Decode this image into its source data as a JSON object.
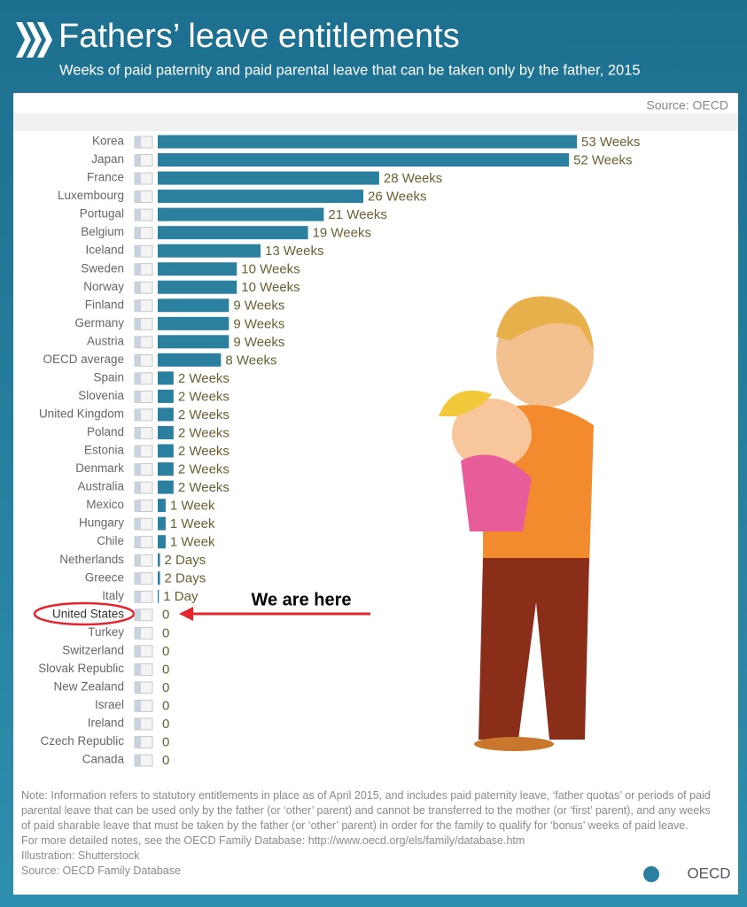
{
  "chart_data": {
    "type": "bar",
    "orientation": "horizontal",
    "title": "Fathers’ leave entitlements",
    "subtitle": "Weeks of paid paternity and paid parental leave that can be taken only by the father, 2015",
    "source": "Source: OECD",
    "annotation": "We are here",
    "highlight": "United States",
    "color": "#2b7f9f",
    "categories": [
      "Korea",
      "Japan",
      "France",
      "Luxembourg",
      "Portugal",
      "Belgium",
      "Iceland",
      "Sweden",
      "Norway",
      "Finland",
      "Germany",
      "Austria",
      "OECD average",
      "Spain",
      "Slovenia",
      "United Kingdom",
      "Poland",
      "Estonia",
      "Denmark",
      "Australia",
      "Mexico",
      "Hungary",
      "Chile",
      "Netherlands",
      "Greece",
      "Italy",
      "United States",
      "Turkey",
      "Switzerland",
      "Slovak Republic",
      "New Zealand",
      "Israel",
      "Ireland",
      "Czech Republic",
      "Canada"
    ],
    "values": [
      53,
      52,
      28,
      26,
      21,
      19,
      13,
      10,
      10,
      9,
      9,
      9,
      8,
      2,
      2,
      2,
      2,
      2,
      2,
      2,
      1,
      1,
      1,
      0.286,
      0.286,
      0.143,
      0,
      0,
      0,
      0,
      0,
      0,
      0,
      0,
      0
    ],
    "value_labels": [
      "53 Weeks",
      "52 Weeks",
      "28 Weeks",
      "26 Weeks",
      "21 Weeks",
      "19 Weeks",
      "13 Weeks",
      "10 Weeks",
      "10 Weeks",
      "9 Weeks",
      "9 Weeks",
      "9 Weeks",
      "8 Weeks",
      "2 Weeks",
      "2 Weeks",
      "2 Weeks",
      "2 Weeks",
      "2 Weeks",
      "2 Weeks",
      "2 Weeks",
      "1 Week",
      "1 Week",
      "1 Week",
      "2 Days",
      "2 Days",
      "1 Day",
      "0",
      "0",
      "0",
      "0",
      "0",
      "0",
      "0",
      "0",
      "0"
    ]
  },
  "notes": [
    "Note: Information refers to statutory entitlements in place as of April 2015, and includes paid paternity leave, ‘father quotas’ or periods of paid parental leave that can be used only by the father (or ‘other’ parent) and cannot be transferred to the mother (or ‘first’ parent), and any weeks of paid sharable leave that must be taken by the father (or ‘other’ parent) in order for the family to qualify for ‘bonus’ weeks of paid leave.",
    "For more detailed notes, see the OECD Family Database: http://www.oecd.org/els/family/database.htm",
    "Illustration: Shutterstock",
    "Source: OECD Family Database"
  ],
  "logo": "OECD"
}
